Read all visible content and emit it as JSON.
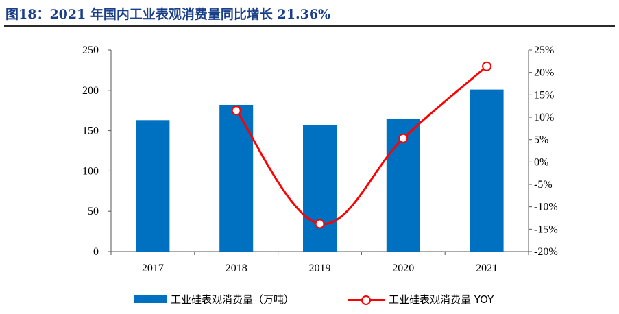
{
  "figure": {
    "title": "图18：2021 年国内工业表观消费量同比增长 21.36%"
  },
  "chart_data": {
    "type": "bar",
    "categories": [
      "2017",
      "2018",
      "2019",
      "2020",
      "2021"
    ],
    "series": [
      {
        "name": "工业硅表观消费量（万吨）",
        "type": "bar",
        "axis": "left",
        "color": "#0070C0",
        "values": [
          163,
          182,
          157,
          165,
          201
        ]
      },
      {
        "name": "工业硅表观消费量 YOY",
        "type": "line",
        "axis": "right",
        "color": "#FF0000",
        "values": [
          null,
          11.5,
          -13.8,
          5.3,
          21.36
        ]
      }
    ],
    "y_left": {
      "ylim": [
        0,
        250
      ],
      "ticks": [
        "0",
        "50",
        "100",
        "150",
        "200",
        "250"
      ]
    },
    "y_right": {
      "ylim": [
        -20,
        25
      ],
      "ticks": [
        "-20%",
        "-15%",
        "-10%",
        "-5%",
        "0%",
        "5%",
        "10%",
        "15%",
        "20%",
        "25%"
      ]
    },
    "grid": false,
    "legend": "bottom"
  }
}
